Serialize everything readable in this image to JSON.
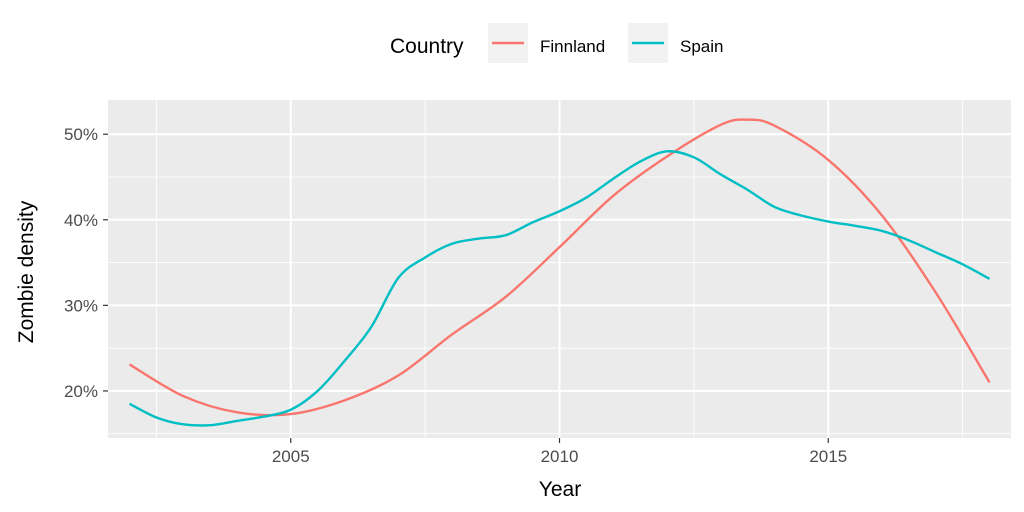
{
  "chart_data": {
    "type": "line",
    "xlabel": "Year",
    "ylabel": "Zombie density",
    "xlim": [
      2001.6,
      2018.4
    ],
    "ylim": [
      14.5,
      54.0
    ],
    "x_ticks": [
      2005,
      2010,
      2015
    ],
    "x_tick_labels": [
      "2005",
      "2010",
      "2015"
    ],
    "x_minor": [
      2002.5,
      2007.5,
      2012.5,
      2017.5
    ],
    "y_ticks": [
      20,
      30,
      40,
      50
    ],
    "y_tick_labels": [
      "20%",
      "30%",
      "40%",
      "50%"
    ],
    "y_minor": [
      15,
      25,
      35,
      45
    ],
    "grid": true,
    "legend": {
      "title": "Country",
      "position": "top",
      "entries": [
        "Finnland",
        "Spain"
      ]
    },
    "series": [
      {
        "name": "Finnland",
        "color": "#F8766D",
        "x": [
          2002,
          2003,
          2004,
          2005,
          2006,
          2007,
          2008,
          2009,
          2010,
          2011,
          2012,
          2013,
          2013.5,
          2014,
          2015,
          2016,
          2017,
          2018
        ],
        "y": [
          23.1,
          19.4,
          17.5,
          17.3,
          18.9,
          21.8,
          26.6,
          31.0,
          36.8,
          42.8,
          47.4,
          51.1,
          51.7,
          51.0,
          47.0,
          40.5,
          31.5,
          21.0
        ]
      },
      {
        "name": "Spain",
        "color": "#00BFC4",
        "x": [
          2002,
          2002.5,
          2003,
          2003.5,
          2004,
          2004.5,
          2005,
          2005.5,
          2006,
          2006.5,
          2007,
          2007.5,
          2008,
          2008.5,
          2009,
          2009.5,
          2010,
          2010.5,
          2011,
          2011.5,
          2012,
          2012.5,
          2013,
          2013.5,
          2014,
          2014.5,
          2015,
          2015.5,
          2016,
          2016.5,
          2017,
          2017.5,
          2018
        ],
        "y": [
          18.5,
          16.9,
          16.1,
          16.0,
          16.5,
          17.0,
          17.8,
          20.0,
          23.5,
          27.5,
          33.2,
          35.6,
          37.2,
          37.8,
          38.2,
          39.7,
          41.0,
          42.6,
          44.8,
          46.8,
          48.0,
          47.3,
          45.3,
          43.5,
          41.5,
          40.5,
          39.8,
          39.3,
          38.7,
          37.6,
          36.2,
          34.8,
          33.1
        ]
      }
    ]
  }
}
